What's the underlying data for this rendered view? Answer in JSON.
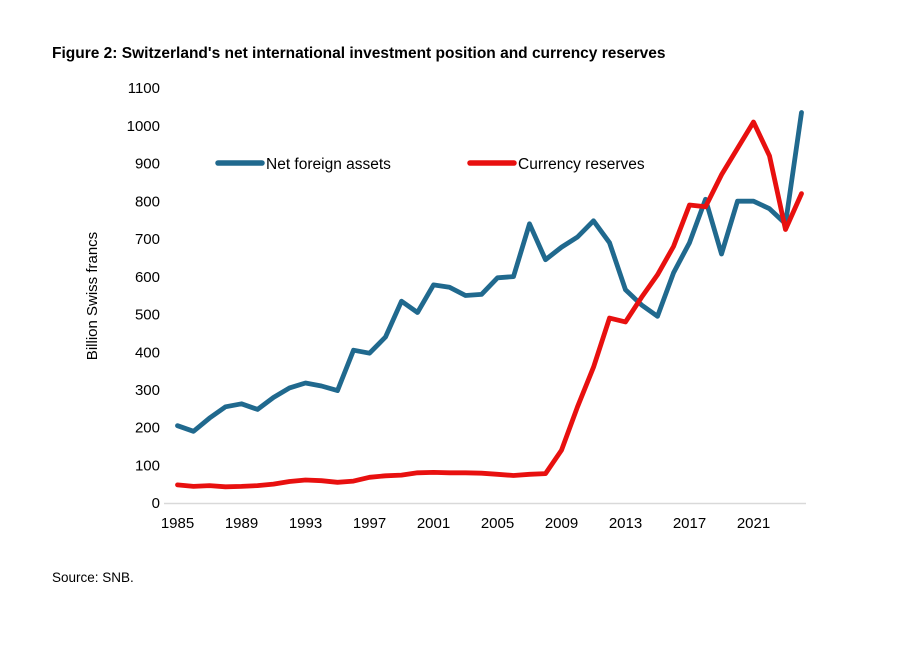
{
  "title": "Figure 2: Switzerland's net international investment position and currency reserves",
  "source": "Source: SNB.",
  "chart_data": {
    "type": "line",
    "title": "Figure 2: Switzerland's net international investment position and currency reserves",
    "xlabel": "",
    "ylabel": "Billion Swiss francs",
    "ylim": [
      0,
      1100
    ],
    "ytick_step": 100,
    "yticks": [
      0,
      100,
      200,
      300,
      400,
      500,
      600,
      700,
      800,
      900,
      1000,
      1100
    ],
    "xticks": [
      1985,
      1989,
      1993,
      1997,
      2001,
      2005,
      2009,
      2013,
      2017,
      2021
    ],
    "x": [
      1985,
      1986,
      1987,
      1988,
      1989,
      1990,
      1991,
      1992,
      1993,
      1994,
      1995,
      1996,
      1997,
      1998,
      1999,
      2000,
      2001,
      2002,
      2003,
      2004,
      2005,
      2006,
      2007,
      2008,
      2009,
      2010,
      2011,
      2012,
      2013,
      2014,
      2015,
      2016,
      2017,
      2018,
      2019,
      2020,
      2021,
      2022,
      2023,
      2024
    ],
    "grid": false,
    "legend_position": "inside-top-left",
    "axis_line_color": "#D9D9D9",
    "series": [
      {
        "name": "Net foreign assets",
        "color": "#20698E",
        "values": [
          205,
          190,
          225,
          255,
          263,
          248,
          280,
          305,
          318,
          310,
          298,
          405,
          397,
          440,
          535,
          505,
          578,
          572,
          550,
          553,
          597,
          600,
          740,
          645,
          678,
          705,
          748,
          690,
          565,
          525,
          495,
          610,
          690,
          805,
          660,
          800,
          800,
          780,
          740,
          1035
        ]
      },
      {
        "name": "Currency reserves",
        "color": "#E8100F",
        "values": [
          48,
          44,
          46,
          43,
          44,
          46,
          50,
          57,
          61,
          59,
          55,
          58,
          68,
          72,
          74,
          80,
          81,
          80,
          80,
          79,
          76,
          73,
          76,
          78,
          140,
          255,
          360,
          490,
          480,
          545,
          605,
          680,
          790,
          785,
          870,
          940,
          1010,
          920,
          725,
          820
        ]
      }
    ]
  }
}
